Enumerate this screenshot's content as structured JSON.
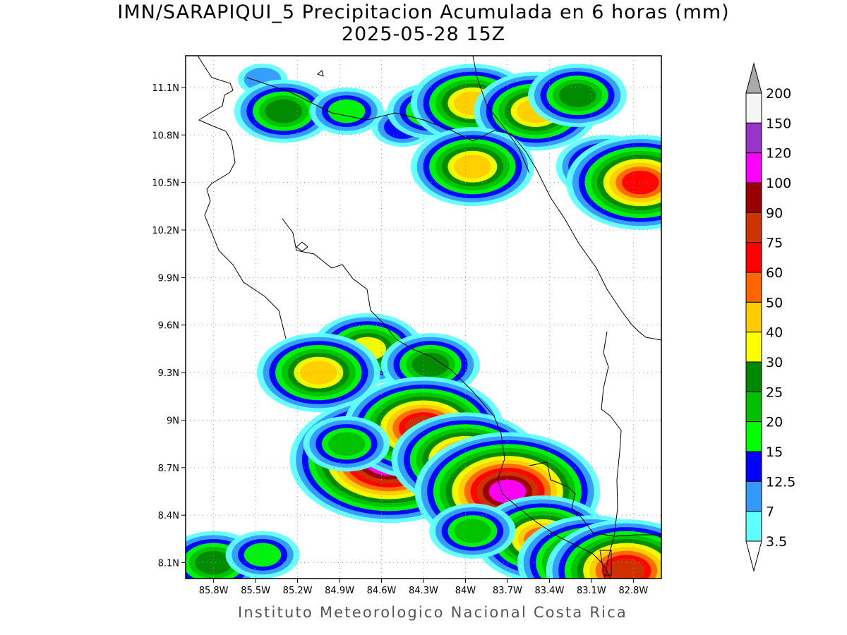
{
  "header": {
    "title": "IMN/SARAPIQUI_5 Precipitacion Acumulada en 6 horas (mm)",
    "subtitle": "2025-05-28 15Z"
  },
  "footer": {
    "credit": "Instituto Meteorologico Nacional Costa Rica"
  },
  "map": {
    "lon_range": [
      -86.0,
      -82.6
    ],
    "lat_range": [
      8.0,
      11.3
    ],
    "lon_ticks": [
      {
        "value": -85.8,
        "label": "85.8W"
      },
      {
        "value": -85.5,
        "label": "85.5W"
      },
      {
        "value": -85.2,
        "label": "85.2W"
      },
      {
        "value": -84.9,
        "label": "84.9W"
      },
      {
        "value": -84.6,
        "label": "84.6W"
      },
      {
        "value": -84.3,
        "label": "84.3W"
      },
      {
        "value": -84.0,
        "label": "84W"
      },
      {
        "value": -83.7,
        "label": "83.7W"
      },
      {
        "value": -83.4,
        "label": "83.4W"
      },
      {
        "value": -83.1,
        "label": "83.1W"
      },
      {
        "value": -82.8,
        "label": "82.8W"
      }
    ],
    "lat_ticks": [
      {
        "value": 11.1,
        "label": "11.1N"
      },
      {
        "value": 10.8,
        "label": "10.8N"
      },
      {
        "value": 10.5,
        "label": "10.5N"
      },
      {
        "value": 10.2,
        "label": "10.2N"
      },
      {
        "value": 9.9,
        "label": "9.9N"
      },
      {
        "value": 9.6,
        "label": "9.6N"
      },
      {
        "value": 9.3,
        "label": "9.3N"
      },
      {
        "value": 9.0,
        "label": "9N"
      },
      {
        "value": 8.7,
        "label": "8.7N"
      },
      {
        "value": 8.4,
        "label": "8.4N"
      },
      {
        "value": 8.1,
        "label": "8.1N"
      }
    ],
    "grid": true,
    "field": "precipitation accumulated 6h (mm)",
    "cells": [
      {
        "lon": -85.45,
        "lat": 11.15,
        "value": 7
      },
      {
        "lon": -85.3,
        "lat": 10.95,
        "value": 25
      },
      {
        "lon": -84.85,
        "lat": 10.95,
        "value": 15
      },
      {
        "lon": -84.45,
        "lat": 10.85,
        "value": 12.5
      },
      {
        "lon": -84.25,
        "lat": 10.95,
        "value": 20
      },
      {
        "lon": -83.95,
        "lat": 11.0,
        "value": 40
      },
      {
        "lon": -83.5,
        "lat": 10.95,
        "value": 40
      },
      {
        "lon": -83.2,
        "lat": 11.05,
        "value": 25
      },
      {
        "lon": -83.95,
        "lat": 10.6,
        "value": 40
      },
      {
        "lon": -83.0,
        "lat": 10.6,
        "value": 25
      },
      {
        "lon": -82.75,
        "lat": 10.5,
        "value": 60
      },
      {
        "lon": -84.7,
        "lat": 9.45,
        "value": 30
      },
      {
        "lon": -85.05,
        "lat": 9.3,
        "value": 40
      },
      {
        "lon": -84.25,
        "lat": 9.35,
        "value": 25
      },
      {
        "lon": -84.6,
        "lat": 8.8,
        "value": 75
      },
      {
        "lon": -84.55,
        "lat": 8.75,
        "value": 120
      },
      {
        "lon": -84.3,
        "lat": 8.95,
        "value": 75
      },
      {
        "lon": -84.0,
        "lat": 8.75,
        "value": 60
      },
      {
        "lon": -84.85,
        "lat": 8.85,
        "value": 20
      },
      {
        "lon": -83.7,
        "lat": 8.55,
        "value": 100
      },
      {
        "lon": -83.45,
        "lat": 8.25,
        "value": 50
      },
      {
        "lon": -83.1,
        "lat": 8.1,
        "value": 60
      },
      {
        "lon": -82.85,
        "lat": 8.05,
        "value": 75
      },
      {
        "lon": -83.95,
        "lat": 8.3,
        "value": 20
      },
      {
        "lon": -85.8,
        "lat": 8.1,
        "value": 25
      },
      {
        "lon": -85.45,
        "lat": 8.15,
        "value": 15
      }
    ]
  },
  "colorbar": {
    "labels": [
      "3.5",
      "7",
      "12.5",
      "15",
      "20",
      "25",
      "30",
      "40",
      "50",
      "60",
      "75",
      "90",
      "100",
      "120",
      "150",
      "200"
    ],
    "colors": [
      "#ffffff",
      "#60ffff",
      "#3399ff",
      "#0000ff",
      "#00ff00",
      "#00c000",
      "#008800",
      "#ffff00",
      "#ffcc00",
      "#ff6600",
      "#ff0000",
      "#cc3300",
      "#990000",
      "#ff00ff",
      "#9933cc",
      "#f5f5f5",
      "#a9a9a9"
    ]
  }
}
